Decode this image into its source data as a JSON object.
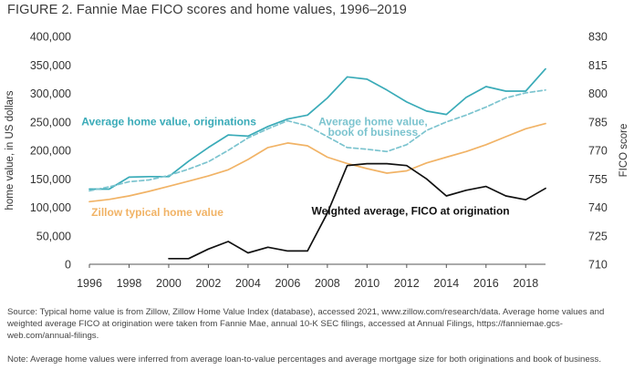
{
  "title": "FIGURE 2. Fannie Mae FICO scores and home values, 1996–2019",
  "source_text": "Source: Typical home value is from Zillow, Zillow Home Value Index (database), accessed 2021, www.zillow.com/research/data. Average home values and weighted average FICO at origination were taken from Fannie Mae, annual 10-K SEC filings, accessed at Annual Filings, https://fanniemae.gcs-web.com/annual-filings.",
  "note_text": "Note: Average home values were inferred from average loan-to-value percentages and average mortgage size for both originations and book of business.",
  "colors": {
    "originations": "#3aabb8",
    "book": "#7cc4cf",
    "zillow": "#f1b366",
    "fico": "#111111",
    "axis": "#555555",
    "text": "#333333"
  },
  "chart_data": {
    "type": "line",
    "title": "Fannie Mae FICO scores and home values, 1996–2019",
    "xlabel": "",
    "ylabel": "home value, in US dollars",
    "y2label": "FICO score",
    "xlim": [
      1996,
      2019
    ],
    "ylim": [
      0,
      400000
    ],
    "y2lim": [
      710,
      830
    ],
    "x_ticks": [
      "1996",
      "1998",
      "2000",
      "2002",
      "2004",
      "2006",
      "2008",
      "2010",
      "2012",
      "2014",
      "2016",
      "2018"
    ],
    "x_tick_values": [
      1996,
      1998,
      2000,
      2002,
      2004,
      2006,
      2008,
      2010,
      2012,
      2014,
      2016,
      2018
    ],
    "y_ticks": [
      "0",
      "50,000",
      "100,000",
      "150,000",
      "200,000",
      "250,000",
      "300,000",
      "350,000",
      "400,000"
    ],
    "y_tick_values": [
      0,
      50000,
      100000,
      150000,
      200000,
      250000,
      300000,
      350000,
      400000
    ],
    "y2_ticks": [
      "710",
      "725",
      "740",
      "755",
      "770",
      "785",
      "800",
      "815",
      "830"
    ],
    "y2_tick_values": [
      710,
      725,
      740,
      755,
      770,
      785,
      800,
      815,
      830
    ],
    "series": [
      {
        "name": "Average home value, originations",
        "axis": "left",
        "style": "solid",
        "color_key": "originations",
        "x": [
          1996,
          1997,
          1998,
          1999,
          2000,
          2001,
          2002,
          2003,
          2004,
          2005,
          2006,
          2007,
          2008,
          2009,
          2010,
          2011,
          2012,
          2013,
          2014,
          2015,
          2016,
          2017,
          2018,
          2019
        ],
        "values": [
          132000,
          132000,
          153000,
          154000,
          154000,
          181000,
          205000,
          227000,
          225000,
          242000,
          255000,
          262000,
          292000,
          329000,
          325000,
          306000,
          285000,
          269000,
          263000,
          293000,
          312000,
          304000,
          304000,
          343000
        ]
      },
      {
        "name": "Average home value, book of business",
        "axis": "left",
        "style": "dashed",
        "color_key": "book",
        "x": [
          1996,
          1997,
          1998,
          1999,
          2000,
          2001,
          2002,
          2003,
          2004,
          2005,
          2006,
          2007,
          2008,
          2009,
          2010,
          2011,
          2012,
          2013,
          2014,
          2015,
          2016,
          2017,
          2018,
          2019
        ],
        "values": [
          129000,
          136000,
          145000,
          148000,
          156000,
          167000,
          180000,
          200000,
          222000,
          238000,
          252000,
          243000,
          224000,
          205000,
          202000,
          198000,
          210000,
          235000,
          250000,
          262000,
          276000,
          292000,
          301000,
          306000
        ]
      },
      {
        "name": "Zillow typical home value",
        "axis": "left",
        "style": "solid",
        "color_key": "zillow",
        "x": [
          1996,
          1997,
          1998,
          1999,
          2000,
          2001,
          2002,
          2003,
          2004,
          2005,
          2006,
          2007,
          2008,
          2009,
          2010,
          2011,
          2012,
          2013,
          2014,
          2015,
          2016,
          2017,
          2018,
          2019
        ],
        "values": [
          110000,
          114000,
          120000,
          128000,
          137000,
          146000,
          155000,
          166000,
          184000,
          205000,
          213000,
          208000,
          188000,
          177000,
          168000,
          160000,
          164000,
          178000,
          188000,
          198000,
          210000,
          224000,
          238000,
          247000
        ]
      },
      {
        "name": "Weighted average, FICO at origination",
        "axis": "right",
        "style": "solid",
        "color_key": "fico",
        "x": [
          2000,
          2001,
          2002,
          2003,
          2004,
          2005,
          2006,
          2007,
          2008,
          2009,
          2010,
          2011,
          2012,
          2013,
          2014,
          2015,
          2016,
          2017,
          2018,
          2019
        ],
        "values": [
          713,
          713,
          718,
          722,
          716,
          719,
          717,
          717,
          737,
          762,
          763,
          763,
          762,
          755,
          746,
          749,
          751,
          746,
          744,
          750
        ]
      }
    ],
    "labels": [
      {
        "text": "Average home value, originations",
        "color_key": "originations",
        "anchor": "start",
        "x": 1995.6,
        "y": 244000,
        "lines": [
          "Average home value, originations"
        ]
      },
      {
        "text": "Average home value, book of business",
        "color_key": "book",
        "anchor": "middle",
        "x": 2010.3,
        "lines": [
          "Average home value,",
          "book of business"
        ],
        "y_lines": [
          244000,
          226000
        ]
      },
      {
        "text": "Zillow typical home value",
        "color_key": "zillow",
        "anchor": "start",
        "x": 1996.1,
        "y": 85000,
        "lines": [
          "Zillow typical home value"
        ]
      },
      {
        "text": "Weighted average, FICO at origination",
        "color_key": "fico",
        "anchor": "start",
        "x": 2007.2,
        "y": 87000,
        "lines": [
          "Weighted average, FICO at origination"
        ]
      }
    ]
  }
}
